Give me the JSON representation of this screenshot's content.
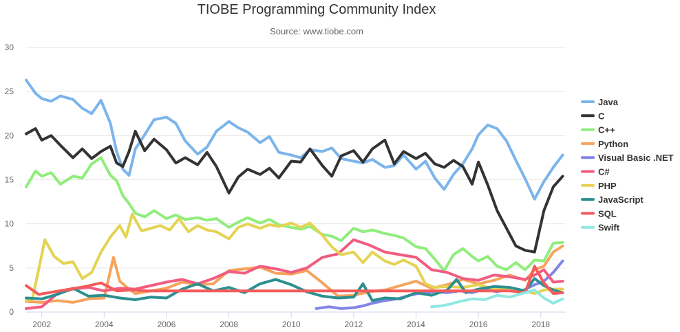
{
  "chart_data": {
    "type": "line",
    "title": "TIOBE Programming Community Index",
    "subtitle": "Source: www.tiobe.com",
    "xlabel": "",
    "ylabel": "",
    "xlim": [
      2001.5,
      2018.8
    ],
    "ylim": [
      0,
      30
    ],
    "y_ticks": [
      "0",
      "5",
      "10",
      "15",
      "20",
      "25",
      "30"
    ],
    "x_ticks": [
      "2002",
      "2004",
      "2006",
      "2008",
      "2010",
      "2012",
      "2014",
      "2016",
      "2018"
    ],
    "grid": true,
    "legend_position": "right",
    "series": [
      {
        "name": "Java",
        "color": "#7cb5ec",
        "x": [
          2001.5,
          2001.8,
          2002,
          2002.3,
          2002.6,
          2003,
          2003.3,
          2003.6,
          2003.9,
          2004.2,
          2004.4,
          2004.6,
          2004.8,
          2005,
          2005.3,
          2005.6,
          2006,
          2006.3,
          2006.6,
          2007,
          2007.3,
          2007.6,
          2008,
          2008.3,
          2008.6,
          2009,
          2009.3,
          2009.6,
          2010,
          2010.3,
          2010.6,
          2011,
          2011.3,
          2011.6,
          2012,
          2012.3,
          2012.6,
          2013,
          2013.3,
          2013.6,
          2014,
          2014.3,
          2014.6,
          2014.9,
          2015.2,
          2015.5,
          2015.8,
          2016,
          2016.3,
          2016.6,
          2016.9,
          2017.2,
          2017.5,
          2017.8,
          2018.1,
          2018.4,
          2018.7
        ],
        "values": [
          26.3,
          24.8,
          24.2,
          23.9,
          24.5,
          24.1,
          23.1,
          22.5,
          24,
          21.4,
          18.2,
          16.2,
          15.5,
          18.5,
          20.1,
          21.8,
          22.1,
          21.4,
          19.4,
          17.9,
          18.7,
          20.5,
          21.6,
          20.9,
          20.4,
          19.2,
          19.9,
          18.1,
          17.8,
          17.5,
          18.4,
          18.2,
          18.6,
          17.4,
          17.1,
          16.9,
          17.3,
          16.4,
          16.6,
          17.8,
          16.2,
          17.1,
          15.2,
          13.9,
          15.6,
          16.8,
          18.5,
          20.1,
          21.2,
          20.8,
          19.4,
          17.2,
          15.1,
          12.8,
          14.8,
          16.4,
          17.8
        ]
      },
      {
        "name": "C",
        "color": "#333333",
        "x": [
          2001.5,
          2001.8,
          2002,
          2002.3,
          2002.6,
          2003,
          2003.3,
          2003.6,
          2003.9,
          2004.2,
          2004.4,
          2004.6,
          2004.8,
          2005,
          2005.3,
          2005.6,
          2006,
          2006.3,
          2006.6,
          2007,
          2007.3,
          2007.6,
          2008,
          2008.3,
          2008.6,
          2009,
          2009.3,
          2009.6,
          2010,
          2010.3,
          2010.6,
          2011,
          2011.3,
          2011.6,
          2012,
          2012.3,
          2012.6,
          2013,
          2013.3,
          2013.6,
          2014,
          2014.3,
          2014.6,
          2014.9,
          2015.2,
          2015.5,
          2015.8,
          2016,
          2016.3,
          2016.6,
          2016.9,
          2017.2,
          2017.5,
          2017.8,
          2018.1,
          2018.4,
          2018.7
        ],
        "values": [
          20.2,
          20.8,
          19.5,
          20,
          18.9,
          17.5,
          18.5,
          17.4,
          18.2,
          18.8,
          16.9,
          16.5,
          18.2,
          20.5,
          18.3,
          19.6,
          18.4,
          16.9,
          17.5,
          16.7,
          18.1,
          16.5,
          13.5,
          15.3,
          16.2,
          15.6,
          16.3,
          15.2,
          17.1,
          17,
          18.5,
          16.6,
          15.4,
          17.7,
          18.3,
          17,
          18.5,
          19.5,
          16.8,
          18.2,
          17.4,
          18,
          16.8,
          16.4,
          17.2,
          16.5,
          14.5,
          17,
          14.4,
          11.5,
          9.5,
          7.5,
          7,
          6.8,
          11.5,
          14.2,
          15.4
        ]
      },
      {
        "name": "C++",
        "color": "#90ed7d",
        "x": [
          2001.5,
          2001.8,
          2002,
          2002.3,
          2002.6,
          2003,
          2003.3,
          2003.6,
          2003.9,
          2004.2,
          2004.4,
          2004.6,
          2004.8,
          2005,
          2005.3,
          2005.6,
          2006,
          2006.3,
          2006.6,
          2007,
          2007.3,
          2007.6,
          2008,
          2008.3,
          2008.6,
          2009,
          2009.3,
          2009.6,
          2010,
          2010.3,
          2010.6,
          2011,
          2011.3,
          2011.6,
          2012,
          2012.3,
          2012.6,
          2013,
          2013.3,
          2013.6,
          2014,
          2014.3,
          2014.6,
          2014.9,
          2015.2,
          2015.5,
          2015.8,
          2016,
          2016.3,
          2016.6,
          2016.9,
          2017.2,
          2017.5,
          2017.8,
          2018.1,
          2018.4,
          2018.7
        ],
        "values": [
          14.2,
          16,
          15.4,
          15.8,
          14.5,
          15.4,
          15.2,
          16.8,
          17.5,
          15.5,
          14.9,
          13.2,
          12.3,
          11.2,
          10.8,
          11.5,
          10.6,
          11,
          10.5,
          10.7,
          10.4,
          10.6,
          9.6,
          10.2,
          10.7,
          10.1,
          10.5,
          9.9,
          9.6,
          9.4,
          9.7,
          8.8,
          8.6,
          8.1,
          9.5,
          9.1,
          9.3,
          8.9,
          8.7,
          8.4,
          7.4,
          7.2,
          6,
          4.7,
          6.5,
          7.2,
          6.3,
          5.8,
          6.3,
          5.2,
          4.8,
          5.6,
          4.8,
          5.9,
          5.8,
          7.8,
          7.9
        ]
      },
      {
        "name": "Python",
        "color": "#f7a35c",
        "x": [
          2001.5,
          2002,
          2002.5,
          2003,
          2003.5,
          2004,
          2004.3,
          2004.5,
          2004.8,
          2005,
          2005.5,
          2006,
          2006.5,
          2007,
          2007.5,
          2008,
          2008.5,
          2009,
          2009.5,
          2010,
          2010.5,
          2011,
          2011.5,
          2012,
          2012.5,
          2013,
          2013.5,
          2014,
          2014.5,
          2015,
          2015.5,
          2016,
          2016.5,
          2017,
          2017.5,
          2017.8,
          2018.1,
          2018.4,
          2018.7
        ],
        "values": [
          1.2,
          1.1,
          1.3,
          1.1,
          1.5,
          1.6,
          6.2,
          3.5,
          2.6,
          2.1,
          2.4,
          2.7,
          3.4,
          3.1,
          3.2,
          4.7,
          4.9,
          5.1,
          4.4,
          4.3,
          4.7,
          3.3,
          1.8,
          1.9,
          2.3,
          2.5,
          3,
          3.5,
          2.7,
          3.1,
          3.7,
          3.2,
          3.6,
          4.2,
          3.6,
          4.8,
          5.2,
          6.8,
          7.5
        ]
      },
      {
        "name": "Visual Basic .NET",
        "color": "#8085e9",
        "x": [
          2010.8,
          2011.2,
          2011.6,
          2012,
          2012.3,
          2012.6,
          2013,
          2013.4,
          2013.8,
          2014.2,
          2014.6,
          2015,
          2015.4,
          2015.8,
          2016.2,
          2016.6,
          2017,
          2017.4,
          2017.8,
          2018.1,
          2018.4,
          2018.7
        ],
        "values": [
          0.4,
          0.6,
          0.4,
          0.5,
          0.7,
          1,
          1.3,
          1.5,
          1.9,
          2.2,
          2.3,
          2.2,
          2.4,
          2.2,
          2.6,
          2.3,
          2.7,
          2.4,
          3.1,
          3.5,
          4.5,
          5.8
        ]
      },
      {
        "name": "C#",
        "color": "#f15c80",
        "x": [
          2001.5,
          2002,
          2002.5,
          2003,
          2003.5,
          2004,
          2004.5,
          2005,
          2005.5,
          2006,
          2006.5,
          2007,
          2007.5,
          2008,
          2008.5,
          2009,
          2009.5,
          2010,
          2010.5,
          2011,
          2011.5,
          2012,
          2012.5,
          2013,
          2013.5,
          2014,
          2014.5,
          2015,
          2015.5,
          2016,
          2016.5,
          2017,
          2017.5,
          2017.8,
          2018.1,
          2018.4,
          2018.7
        ],
        "values": [
          0.4,
          0.6,
          2.1,
          2.6,
          2.8,
          2.4,
          2.7,
          2.6,
          3,
          3.4,
          3.7,
          3.2,
          3.8,
          4.6,
          4.4,
          5.2,
          4.9,
          4.5,
          5,
          6.2,
          6.6,
          8.2,
          7.6,
          6.8,
          6.5,
          6.2,
          4.8,
          4.5,
          3.8,
          3.6,
          4.2,
          4,
          3.7,
          4.2,
          4.8,
          3.4,
          3.5
        ]
      },
      {
        "name": "PHP",
        "color": "#e4d354",
        "x": [
          2001.5,
          2001.7,
          2001.9,
          2002.1,
          2002.4,
          2002.7,
          2003,
          2003.3,
          2003.6,
          2003.9,
          2004.2,
          2004.5,
          2004.7,
          2004.9,
          2005.2,
          2005.5,
          2005.8,
          2006.1,
          2006.4,
          2006.7,
          2007,
          2007.3,
          2007.6,
          2008,
          2008.3,
          2008.6,
          2009,
          2009.3,
          2009.6,
          2010,
          2010.3,
          2010.6,
          2011,
          2011.3,
          2011.6,
          2012,
          2012.3,
          2012.6,
          2013,
          2013.3,
          2013.6,
          2014,
          2014.3,
          2014.6,
          2015,
          2015.5,
          2016,
          2016.5,
          2017,
          2017.5,
          2017.8,
          2018.1,
          2018.4,
          2018.7
        ],
        "values": [
          1.3,
          1.5,
          4.8,
          8.2,
          6.3,
          5.5,
          5.7,
          3.8,
          4.5,
          6.8,
          8.5,
          9.8,
          8.5,
          11.1,
          9.2,
          9.5,
          9.8,
          9.3,
          10.6,
          9.1,
          9.8,
          9.3,
          9.1,
          8.3,
          9.6,
          10,
          9.5,
          9.9,
          9.7,
          10.1,
          9.6,
          10.1,
          8.7,
          7.4,
          6.5,
          6.8,
          5.6,
          6.8,
          5.8,
          5.4,
          5.9,
          5.2,
          3.2,
          2.8,
          2.9,
          2.8,
          3.1,
          2.6,
          2.6,
          2.4,
          2.1,
          2.5,
          2.6,
          2.6
        ]
      },
      {
        "name": "JavaScript",
        "color": "#2b908f",
        "x": [
          2001.5,
          2002,
          2002.5,
          2003,
          2003.5,
          2004,
          2004.5,
          2005,
          2005.5,
          2006,
          2006.5,
          2007,
          2007.5,
          2008,
          2008.5,
          2009,
          2009.5,
          2010,
          2010.5,
          2011,
          2011.5,
          2012,
          2012.3,
          2012.6,
          2013,
          2013.5,
          2014,
          2014.5,
          2015,
          2015.3,
          2015.6,
          2016,
          2016.5,
          2017,
          2017.5,
          2017.8,
          2018.1,
          2018.4,
          2018.7
        ],
        "values": [
          1.6,
          1.5,
          2,
          2.7,
          1.8,
          1.9,
          1.6,
          1.4,
          1.7,
          1.6,
          2.6,
          3.2,
          2.4,
          2.8,
          2.2,
          3.2,
          3.7,
          3.1,
          2.3,
          1.8,
          1.6,
          1.7,
          3.2,
          1.3,
          1.6,
          1.5,
          2.2,
          1.9,
          2.5,
          3.7,
          2.2,
          2.6,
          2.9,
          2.8,
          2.4,
          3.8,
          3,
          2.5,
          2.2
        ]
      },
      {
        "name": "SQL",
        "color": "#f45b5b",
        "x": [
          2001.5,
          2001.9,
          2002.4,
          2002.9,
          2003.4,
          2003.9,
          2004.4,
          2004.9,
          2005.4,
          2006,
          2008,
          2010,
          2012,
          2014,
          2016,
          2017,
          2017.5,
          2017.8,
          2018.1,
          2018.4,
          2018.7
        ],
        "values": [
          3,
          2,
          2.3,
          2.6,
          2.9,
          3.3,
          2.4,
          2.5,
          2.4,
          2.4,
          2.4,
          2.4,
          2.4,
          2.4,
          2.4,
          2.4,
          2.2,
          5.2,
          3.3,
          2.1,
          2.2
        ]
      },
      {
        "name": "Swift",
        "color": "#91e8e1",
        "x": [
          2014.5,
          2014.8,
          2015.1,
          2015.4,
          2015.8,
          2016.2,
          2016.6,
          2017,
          2017.4,
          2017.8,
          2018.1,
          2018.4,
          2018.7
        ],
        "values": [
          0.6,
          0.7,
          0.9,
          1.2,
          1.5,
          1.4,
          1.9,
          1.7,
          2.1,
          2.5,
          1.6,
          1,
          1.5
        ]
      }
    ]
  }
}
